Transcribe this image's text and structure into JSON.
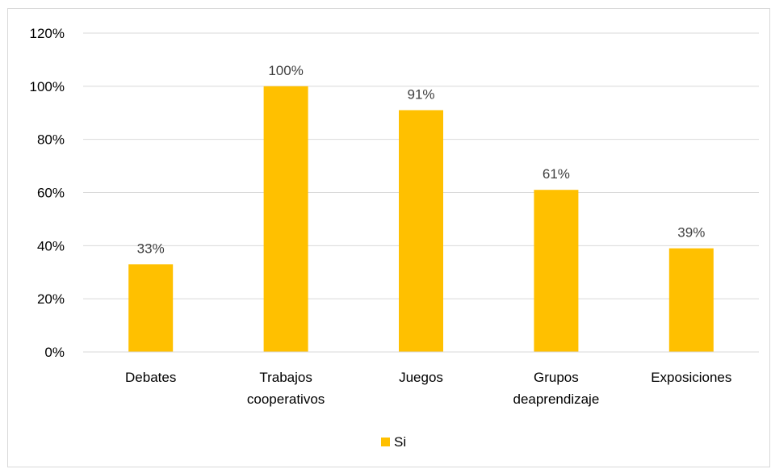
{
  "chart_data": {
    "type": "bar",
    "categories": [
      [
        "Debates"
      ],
      [
        "Trabajos",
        "cooperativos"
      ],
      [
        "Juegos"
      ],
      [
        "Grupos",
        "deaprendizaje"
      ],
      [
        "Exposiciones"
      ]
    ],
    "series": [
      {
        "name": "Si",
        "values": [
          33,
          100,
          91,
          61,
          39
        ],
        "data_labels": [
          "33%",
          "100%",
          "91%",
          "61%",
          "39%"
        ],
        "color": "#FFC000"
      }
    ],
    "ylim": [
      0,
      120
    ],
    "y_ticks": [
      0,
      20,
      40,
      60,
      80,
      100,
      120
    ],
    "y_tick_labels": [
      "0%",
      "20%",
      "40%",
      "60%",
      "80%",
      "100%",
      "120%"
    ],
    "grid": true,
    "legend_position": "bottom",
    "colors": {
      "gridline": "#d9d9d9",
      "text": "#000000",
      "data_label": "#404040"
    }
  }
}
